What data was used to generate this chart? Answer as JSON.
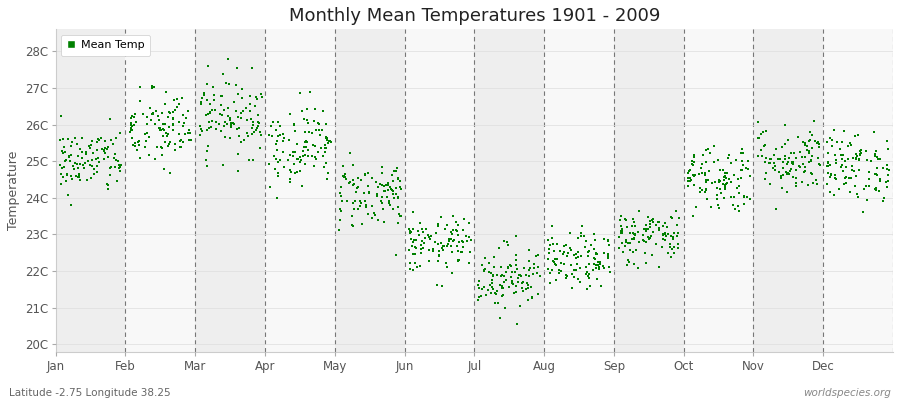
{
  "title": "Monthly Mean Temperatures 1901 - 2009",
  "ylabel": "Temperature",
  "subtitle": "Latitude -2.75 Longitude 38.25",
  "watermark": "worldspecies.org",
  "dot_color": "#008000",
  "background_color": "#ffffff",
  "plot_bg_light": "#f0f0f0",
  "plot_bg_dark": "#e0e0e0",
  "ytick_labels": [
    "20C",
    "21C",
    "22C",
    "23C",
    "24C",
    "25C",
    "26C",
    "27C",
    "28C"
  ],
  "ytick_values": [
    20,
    21,
    22,
    23,
    24,
    25,
    26,
    27,
    28
  ],
  "ylim": [
    19.8,
    28.6
  ],
  "months": [
    "Jan",
    "Feb",
    "Mar",
    "Apr",
    "May",
    "Jun",
    "Jul",
    "Aug",
    "Sep",
    "Oct",
    "Nov",
    "Dec"
  ],
  "month_boundaries": [
    0,
    1,
    2,
    3,
    4,
    5,
    6,
    7,
    8,
    9,
    10,
    11,
    12
  ],
  "n_years": 109,
  "mean_temps_by_month": [
    25.0,
    25.85,
    26.25,
    25.45,
    24.1,
    22.7,
    21.85,
    22.25,
    22.95,
    24.55,
    25.05,
    24.85
  ],
  "std_temps_by_month": [
    0.45,
    0.55,
    0.55,
    0.55,
    0.48,
    0.38,
    0.45,
    0.38,
    0.38,
    0.48,
    0.48,
    0.48
  ],
  "seed": 42
}
